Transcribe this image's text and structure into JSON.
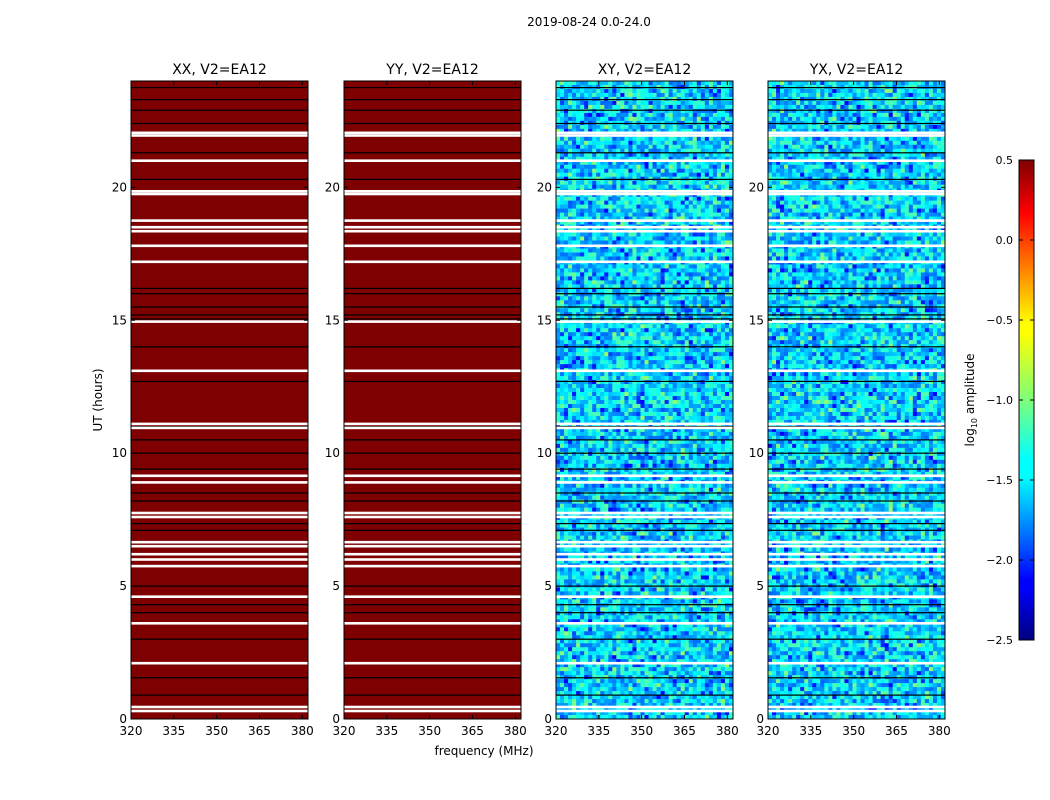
{
  "figure": {
    "suptitle": "2019-08-24 0.0-24.0"
  },
  "chart_data": {
    "type": "heatmap",
    "suptitle": "2019-08-24 0.0-24.0",
    "xlabel": "frequency (MHz)",
    "ylabel": "UT (hours)",
    "xlim": [
      320,
      382
    ],
    "ylim": [
      0,
      24
    ],
    "xticks": [
      320,
      335,
      350,
      365,
      380
    ],
    "yticks": [
      0,
      5,
      10,
      15,
      20
    ],
    "panels": [
      {
        "title": "XX, V2=EA12",
        "pattern": "saturated"
      },
      {
        "title": "YY, V2=EA12",
        "pattern": "saturated"
      },
      {
        "title": "XY, V2=EA12",
        "pattern": "noise"
      },
      {
        "title": "YX, V2=EA12",
        "pattern": "noise"
      }
    ],
    "flagged_ut_hours": [
      0.3,
      0.45,
      2.1,
      3.6,
      4.6,
      5.75,
      6.0,
      6.2,
      6.5,
      6.65,
      7.6,
      7.75,
      8.9,
      9.15,
      10.95,
      11.1,
      13.1,
      14.95,
      17.2,
      17.8,
      18.35,
      18.5,
      18.75,
      19.75,
      19.85,
      21.0,
      21.95,
      22.05
    ],
    "gap_ut_hours": [
      0.9,
      1.55,
      3.0,
      4.0,
      4.3,
      5.0,
      7.1,
      7.35,
      8.2,
      8.5,
      9.4,
      10.0,
      10.5,
      11.0,
      12.7,
      14.0,
      15.05,
      15.2,
      15.5,
      16.0,
      16.2,
      20.3,
      21.3,
      22.4,
      22.9,
      23.3,
      23.75
    ],
    "colorbar": {
      "label": "log10 amplitude",
      "label_main": "log",
      "label_sub": "10",
      "label_tail": " amplitude",
      "min": -2.5,
      "max": 0.5,
      "ticks": [
        0.5,
        0.0,
        -0.5,
        -1.0,
        -1.5,
        -2.0,
        -2.5
      ],
      "tick_labels": [
        "0.5",
        "0.0",
        "−0.5",
        "−1.0",
        "−1.5",
        "−2.0",
        "−2.5"
      ],
      "colormap": "jet"
    },
    "colors": {
      "saturated": "#7f0000",
      "flag_line": "#ffffff",
      "gap_line": "#000000"
    }
  }
}
